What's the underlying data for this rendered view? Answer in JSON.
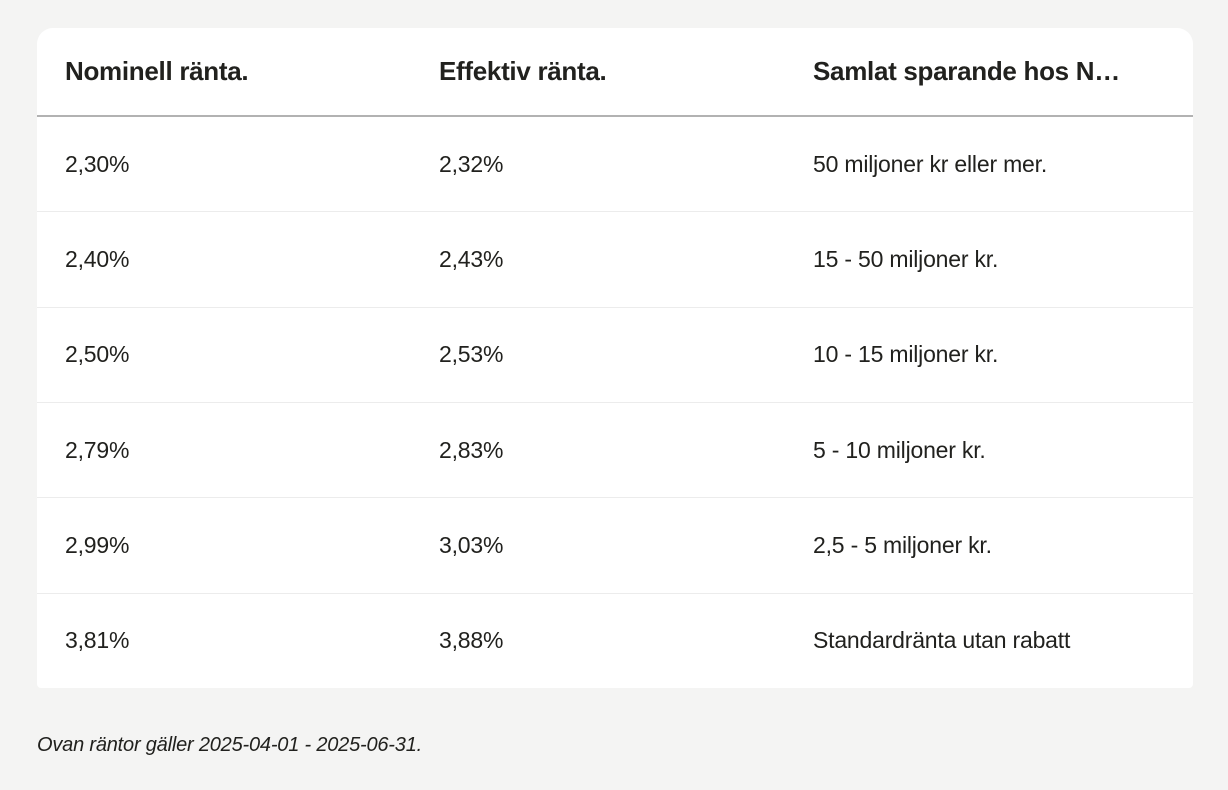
{
  "table": {
    "columns": [
      {
        "label": "Nominell ränta."
      },
      {
        "label": "Effektiv ränta."
      },
      {
        "label": "Samlat sparande hos N…"
      }
    ],
    "rows": [
      {
        "nominal": "2,30%",
        "effective": "2,32%",
        "savings": "50 miljoner kr eller mer."
      },
      {
        "nominal": "2,40%",
        "effective": "2,43%",
        "savings": "15 - 50 miljoner kr."
      },
      {
        "nominal": "2,50%",
        "effective": "2,53%",
        "savings": "10 - 15 miljoner kr."
      },
      {
        "nominal": "2,79%",
        "effective": "2,83%",
        "savings": "5 - 10 miljoner kr."
      },
      {
        "nominal": "2,99%",
        "effective": "3,03%",
        "savings": "2,5 - 5 miljoner kr."
      },
      {
        "nominal": "3,81%",
        "effective": "3,88%",
        "savings": "Standardränta utan rabatt"
      }
    ]
  },
  "footer": {
    "note": "Ovan räntor gäller 2025-04-01 - 2025-06-31."
  },
  "colors": {
    "page_bg": "#f4f4f3",
    "card_bg": "#ffffff",
    "text": "#21211e",
    "header_divider": "#b2b2b2",
    "row_divider": "#ececec"
  }
}
